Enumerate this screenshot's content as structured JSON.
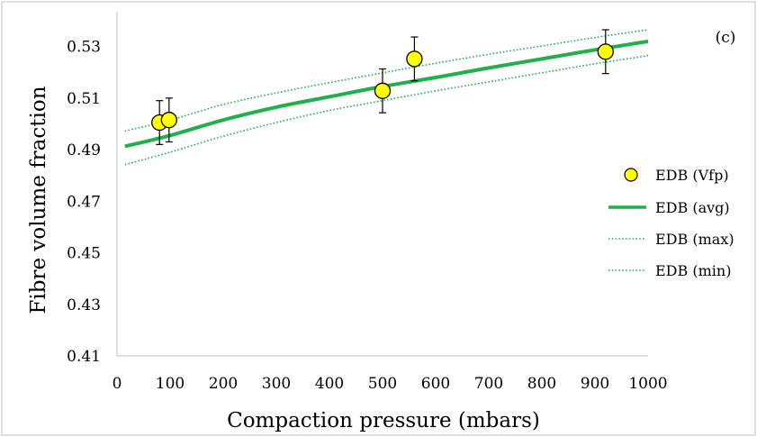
{
  "chart_data": {
    "type": "scatter",
    "panel_label": "(c)",
    "xlabel": "Compaction pressure (mbars)",
    "ylabel": "Fibre volume fraction",
    "xlim": [
      0,
      1000
    ],
    "ylim": [
      0.41,
      0.54
    ],
    "x_ticks": [
      "0",
      "100",
      "200",
      "300",
      "400",
      "500",
      "600",
      "700",
      "800",
      "900",
      "1000"
    ],
    "y_ticks": [
      "0.41",
      "0.43",
      "0.45",
      "0.47",
      "0.49",
      "0.51",
      "0.53"
    ],
    "grid": false,
    "legend_position": "right",
    "colors": {
      "points": "#ffff00",
      "point_edge": "#000000",
      "lines": "#1fb04a",
      "error_bars": "#000000"
    },
    "series": [
      {
        "name": "EDB (Vfp)",
        "kind": "points",
        "x": [
          80,
          98,
          500,
          560,
          920
        ],
        "y": [
          0.5005,
          0.5015,
          0.5128,
          0.5252,
          0.528
        ],
        "yerr": [
          0.0085,
          0.0085,
          0.0085,
          0.0085,
          0.0085
        ]
      },
      {
        "name": "EDB (avg)",
        "kind": "line",
        "style": "solid",
        "x": [
          15,
          100,
          200,
          300,
          400,
          500,
          600,
          700,
          800,
          900,
          1000
        ],
        "y": [
          0.4913,
          0.4955,
          0.5015,
          0.5065,
          0.5105,
          0.5145,
          0.518,
          0.5217,
          0.5252,
          0.5287,
          0.532
        ]
      },
      {
        "name": "EDB (max)",
        "kind": "line",
        "style": "dotted",
        "x": [
          15,
          100,
          200,
          300,
          400,
          500,
          600,
          700,
          800,
          900,
          1000
        ],
        "y": [
          0.4972,
          0.5015,
          0.5075,
          0.512,
          0.516,
          0.5198,
          0.5235,
          0.527,
          0.5302,
          0.5335,
          0.5365
        ]
      },
      {
        "name": "EDB (min)",
        "kind": "line",
        "style": "dotted",
        "x": [
          15,
          100,
          200,
          300,
          400,
          500,
          600,
          700,
          800,
          900,
          1000
        ],
        "y": [
          0.4842,
          0.489,
          0.4952,
          0.5005,
          0.5052,
          0.509,
          0.5128,
          0.5163,
          0.5198,
          0.5233,
          0.5265
        ]
      }
    ]
  }
}
